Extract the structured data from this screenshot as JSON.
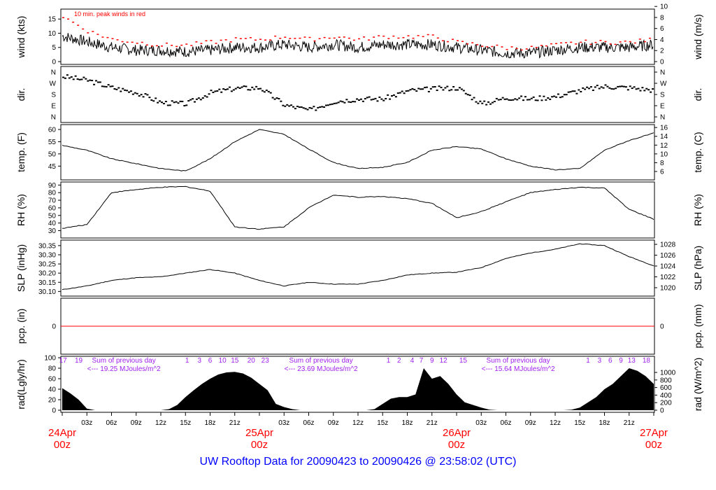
{
  "title": "UW Rooftop Data for 20090423  to  20090426 @ 23:58:02  (UTC)",
  "chart_data": [
    {
      "type": "line",
      "name": "wind",
      "ylabel": "wind (kts)",
      "ylabel_right": "wind (m/s)",
      "ylim": [
        0,
        18.5
      ],
      "yticks": [
        0,
        5,
        10,
        15
      ],
      "right_ylim": [
        0,
        9.5
      ],
      "right_yticks": [
        0,
        2,
        4,
        6,
        8,
        10
      ],
      "annotation": "10 min. peak winds in red",
      "peak_color": "#ff0000",
      "x_hours": [
        0,
        3,
        6,
        9,
        12,
        15,
        18,
        21,
        24,
        27,
        30,
        33,
        36,
        39,
        42,
        45,
        48,
        51,
        54,
        57,
        60,
        63,
        66,
        69,
        72
      ],
      "values": [
        9,
        7,
        5,
        4,
        4,
        3.5,
        4,
        5,
        5,
        6,
        5,
        6,
        5,
        6,
        6,
        6,
        5,
        4,
        3,
        3,
        4,
        5,
        5,
        5,
        6
      ],
      "peaks": [
        16,
        11,
        8,
        7,
        6,
        6,
        7,
        8,
        8,
        9,
        8,
        9,
        8,
        9,
        9,
        9,
        7,
        6,
        5,
        5,
        6,
        7,
        7,
        7,
        8
      ]
    },
    {
      "type": "scatter",
      "name": "dir",
      "ylabel": "dir.",
      "ylabel_right": "dir.",
      "yticks": [
        "N",
        "E",
        "S",
        "W",
        "N"
      ],
      "ylim": [
        0,
        360
      ],
      "x_hours": [
        0,
        3,
        6,
        9,
        12,
        15,
        18,
        21,
        24,
        27,
        30,
        33,
        36,
        39,
        42,
        45,
        48,
        51,
        54,
        57,
        60,
        63,
        66,
        69,
        72
      ],
      "values": [
        330,
        300,
        240,
        200,
        120,
        110,
        200,
        235,
        240,
        100,
        60,
        130,
        150,
        150,
        215,
        230,
        240,
        110,
        160,
        150,
        170,
        220,
        250,
        240,
        220
      ]
    },
    {
      "type": "line",
      "name": "temp",
      "ylabel": "temp. (F)",
      "ylabel_right": "temp. (C)",
      "ylim": [
        40.5,
        62
      ],
      "yticks": [
        45,
        50,
        55,
        60
      ],
      "right_yticks": [
        6,
        8,
        10,
        12,
        14,
        16
      ],
      "x_hours": [
        0,
        3,
        6,
        9,
        12,
        15,
        18,
        21,
        24,
        27,
        30,
        33,
        36,
        39,
        42,
        45,
        48,
        51,
        54,
        57,
        60,
        63,
        66,
        69,
        72
      ],
      "values": [
        53.5,
        51.5,
        48,
        46,
        44,
        43,
        48,
        55,
        60,
        58,
        52,
        46.5,
        44,
        44.5,
        46.5,
        51.5,
        53,
        52,
        48,
        45,
        43.5,
        44,
        51.5,
        55.5,
        58.5
      ]
    },
    {
      "type": "line",
      "name": "rh",
      "ylabel": "RH (%)",
      "ylabel_right": "RH (%)",
      "ylim": [
        24,
        94
      ],
      "yticks": [
        30,
        40,
        50,
        60,
        70,
        80,
        90
      ],
      "x_hours": [
        0,
        3,
        6,
        9,
        12,
        15,
        18,
        21,
        24,
        27,
        30,
        33,
        36,
        39,
        42,
        45,
        48,
        51,
        54,
        57,
        60,
        63,
        66,
        69,
        72
      ],
      "values": [
        33,
        38,
        80,
        84,
        87,
        88,
        82,
        35,
        32,
        35,
        60,
        77,
        74,
        75,
        72,
        66,
        47,
        55,
        68,
        80,
        84,
        87,
        86,
        58,
        45
      ]
    },
    {
      "type": "line",
      "name": "slp",
      "ylabel": "SLP (inHg)",
      "ylabel_right": "SLP (hPa)",
      "ylim": [
        30.09,
        30.38
      ],
      "yticks": [
        30.1,
        30.15,
        30.2,
        30.25,
        30.3,
        30.35
      ],
      "right_yticks": [
        1020,
        1022,
        1024,
        1026,
        1028
      ],
      "x_hours": [
        0,
        3,
        6,
        9,
        12,
        15,
        18,
        21,
        24,
        27,
        30,
        33,
        36,
        39,
        42,
        45,
        48,
        51,
        54,
        57,
        60,
        63,
        66,
        69,
        72
      ],
      "values": [
        30.11,
        30.13,
        30.16,
        30.175,
        30.18,
        30.2,
        30.22,
        30.2,
        30.16,
        30.13,
        30.15,
        30.14,
        30.14,
        30.16,
        30.19,
        30.2,
        30.205,
        30.23,
        30.28,
        30.31,
        30.33,
        30.36,
        30.35,
        30.29,
        30.24
      ]
    },
    {
      "type": "line",
      "name": "pcp",
      "ylabel": "pcp. (in)",
      "ylabel_right": "pcp. (mm)",
      "yticks": [
        0
      ],
      "right_yticks": [
        0
      ],
      "values_all": 0,
      "line_color": "#ff0000"
    },
    {
      "type": "area",
      "name": "rad",
      "ylabel": "rad(Lgly/hr)",
      "ylabel_right": "rad (W/m^2)",
      "ylim": [
        0,
        100
      ],
      "yticks": [
        0,
        20,
        40,
        60,
        80,
        100
      ],
      "right_yticks": [
        0,
        200,
        400,
        600,
        800,
        1000
      ],
      "values_hourly": [
        42,
        32,
        20,
        3,
        0,
        0,
        0,
        0,
        0,
        0,
        0,
        0,
        0,
        2,
        10,
        25,
        38,
        50,
        60,
        68,
        72,
        73,
        70,
        62,
        50,
        38,
        12,
        6,
        2,
        0,
        0,
        0,
        0,
        0,
        0,
        0,
        0,
        0,
        2,
        12,
        22,
        25,
        25,
        30,
        80,
        60,
        65,
        50,
        30,
        15,
        10,
        5,
        1,
        0,
        0,
        0,
        0,
        0,
        0,
        0,
        0,
        0,
        1,
        5,
        15,
        25,
        40,
        50,
        65,
        80,
        75,
        65,
        50
      ],
      "local_hour_labels": [
        [
          {
            "h": 0.1,
            "t": "17"
          },
          {
            "h": 2,
            "t": "19"
          }
        ],
        [
          {
            "h": 15.2,
            "t": "1"
          },
          {
            "h": 16.7,
            "t": "3"
          },
          {
            "h": 18,
            "t": "6"
          },
          {
            "h": 19.5,
            "t": "10"
          },
          {
            "h": 21,
            "t": "15"
          },
          {
            "h": 23,
            "t": "20"
          },
          {
            "h": 24.7,
            "t": "23"
          }
        ],
        [
          {
            "h": 39.7,
            "t": "1"
          },
          {
            "h": 41,
            "t": "2"
          },
          {
            "h": 42.6,
            "t": "4"
          },
          {
            "h": 43.7,
            "t": "7"
          },
          {
            "h": 45,
            "t": "9"
          },
          {
            "h": 46.4,
            "t": "12"
          },
          {
            "h": 48.8,
            "t": "15"
          }
        ],
        [
          {
            "h": 64,
            "t": "1"
          },
          {
            "h": 65.4,
            "t": "3"
          },
          {
            "h": 66.7,
            "t": "6"
          },
          {
            "h": 68,
            "t": "9"
          },
          {
            "h": 69.3,
            "t": "13"
          },
          {
            "h": 71.1,
            "t": "18"
          }
        ]
      ],
      "sums": [
        {
          "h": 7.5,
          "label": "Sum of previous day",
          "value": "<--- 19.25 MJoules/m^2"
        },
        {
          "h": 31.5,
          "label": "Sum of previous day",
          "value": "<--- 23.69 MJoules/m^2"
        },
        {
          "h": 55.5,
          "label": "Sum of previous day",
          "value": "<--- 15.64 MJoules/m^2"
        }
      ],
      "label_color": "#a020f0"
    }
  ],
  "x_axis": {
    "ticks": [
      "03z",
      "06z",
      "09z",
      "12z",
      "15z",
      "18z",
      "21z",
      "",
      "03z",
      "06z",
      "09z",
      "12z",
      "15z",
      "18z",
      "21z",
      "",
      "03z",
      "06z",
      "09z",
      "12z",
      "15z",
      "18z",
      "21z"
    ],
    "days": [
      {
        "date": "24Apr",
        "time": "00z"
      },
      {
        "date": "25Apr",
        "time": "00z"
      },
      {
        "date": "26Apr",
        "time": "00z"
      },
      {
        "date": "27Apr",
        "time": "00z"
      }
    ],
    "range_hours": [
      0,
      72
    ],
    "day_color": "#ff0000"
  }
}
